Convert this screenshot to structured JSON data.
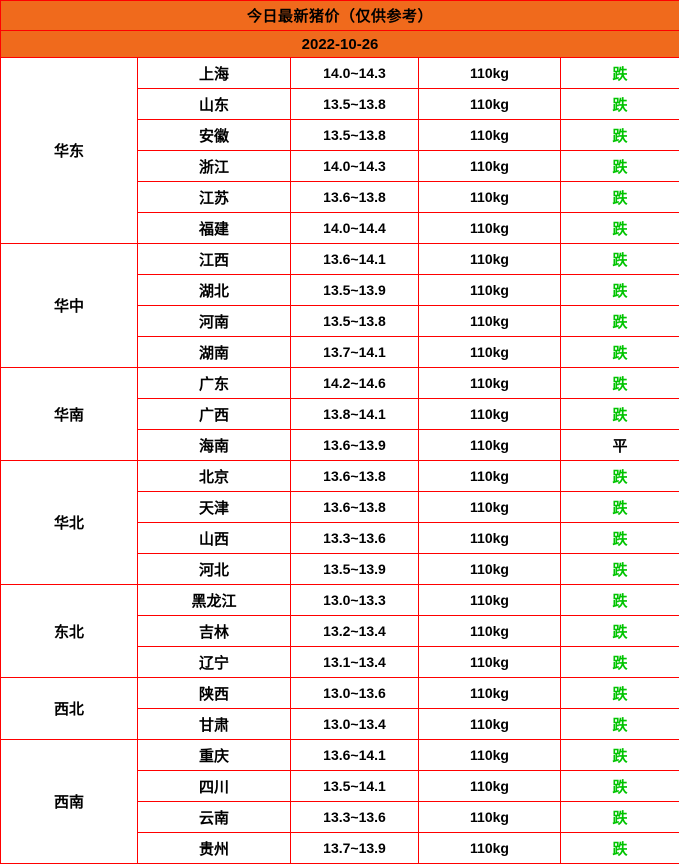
{
  "header": {
    "title": "今日最新猪价（仅供参考）",
    "date": "2022-10-26"
  },
  "colors": {
    "header_bg": "#f06a1c",
    "grid_border": "#ff0000",
    "trend_down": "#00c400",
    "trend_flat": "#000000"
  },
  "table": {
    "regions": [
      {
        "name": "华东",
        "rows": [
          {
            "province": "上海",
            "price": "14.0~14.3",
            "weight": "110kg",
            "trend": "跌",
            "trend_type": "down"
          },
          {
            "province": "山东",
            "price": "13.5~13.8",
            "weight": "110kg",
            "trend": "跌",
            "trend_type": "down"
          },
          {
            "province": "安徽",
            "price": "13.5~13.8",
            "weight": "110kg",
            "trend": "跌",
            "trend_type": "down"
          },
          {
            "province": "浙江",
            "price": "14.0~14.3",
            "weight": "110kg",
            "trend": "跌",
            "trend_type": "down"
          },
          {
            "province": "江苏",
            "price": "13.6~13.8",
            "weight": "110kg",
            "trend": "跌",
            "trend_type": "down"
          },
          {
            "province": "福建",
            "price": "14.0~14.4",
            "weight": "110kg",
            "trend": "跌",
            "trend_type": "down"
          }
        ]
      },
      {
        "name": "华中",
        "rows": [
          {
            "province": "江西",
            "price": "13.6~14.1",
            "weight": "110kg",
            "trend": "跌",
            "trend_type": "down"
          },
          {
            "province": "湖北",
            "price": "13.5~13.9",
            "weight": "110kg",
            "trend": "跌",
            "trend_type": "down"
          },
          {
            "province": "河南",
            "price": "13.5~13.8",
            "weight": "110kg",
            "trend": "跌",
            "trend_type": "down"
          },
          {
            "province": "湖南",
            "price": "13.7~14.1",
            "weight": "110kg",
            "trend": "跌",
            "trend_type": "down"
          }
        ]
      },
      {
        "name": "华南",
        "rows": [
          {
            "province": "广东",
            "price": "14.2~14.6",
            "weight": "110kg",
            "trend": "跌",
            "trend_type": "down"
          },
          {
            "province": "广西",
            "price": "13.8~14.1",
            "weight": "110kg",
            "trend": "跌",
            "trend_type": "down"
          },
          {
            "province": "海南",
            "price": "13.6~13.9",
            "weight": "110kg",
            "trend": "平",
            "trend_type": "flat"
          }
        ]
      },
      {
        "name": "华北",
        "rows": [
          {
            "province": "北京",
            "price": "13.6~13.8",
            "weight": "110kg",
            "trend": "跌",
            "trend_type": "down"
          },
          {
            "province": "天津",
            "price": "13.6~13.8",
            "weight": "110kg",
            "trend": "跌",
            "trend_type": "down"
          },
          {
            "province": "山西",
            "price": "13.3~13.6",
            "weight": "110kg",
            "trend": "跌",
            "trend_type": "down"
          },
          {
            "province": "河北",
            "price": "13.5~13.9",
            "weight": "110kg",
            "trend": "跌",
            "trend_type": "down"
          }
        ]
      },
      {
        "name": "东北",
        "rows": [
          {
            "province": "黑龙江",
            "price": "13.0~13.3",
            "weight": "110kg",
            "trend": "跌",
            "trend_type": "down"
          },
          {
            "province": "吉林",
            "price": "13.2~13.4",
            "weight": "110kg",
            "trend": "跌",
            "trend_type": "down"
          },
          {
            "province": "辽宁",
            "price": "13.1~13.4",
            "weight": "110kg",
            "trend": "跌",
            "trend_type": "down"
          }
        ]
      },
      {
        "name": "西北",
        "rows": [
          {
            "province": "陕西",
            "price": "13.0~13.6",
            "weight": "110kg",
            "trend": "跌",
            "trend_type": "down"
          },
          {
            "province": "甘肃",
            "price": "13.0~13.4",
            "weight": "110kg",
            "trend": "跌",
            "trend_type": "down"
          }
        ]
      },
      {
        "name": "西南",
        "rows": [
          {
            "province": "重庆",
            "price": "13.6~14.1",
            "weight": "110kg",
            "trend": "跌",
            "trend_type": "down"
          },
          {
            "province": "四川",
            "price": "13.5~14.1",
            "weight": "110kg",
            "trend": "跌",
            "trend_type": "down"
          },
          {
            "province": "云南",
            "price": "13.3~13.6",
            "weight": "110kg",
            "trend": "跌",
            "trend_type": "down"
          },
          {
            "province": "贵州",
            "price": "13.7~13.9",
            "weight": "110kg",
            "trend": "跌",
            "trend_type": "down"
          }
        ]
      }
    ]
  }
}
